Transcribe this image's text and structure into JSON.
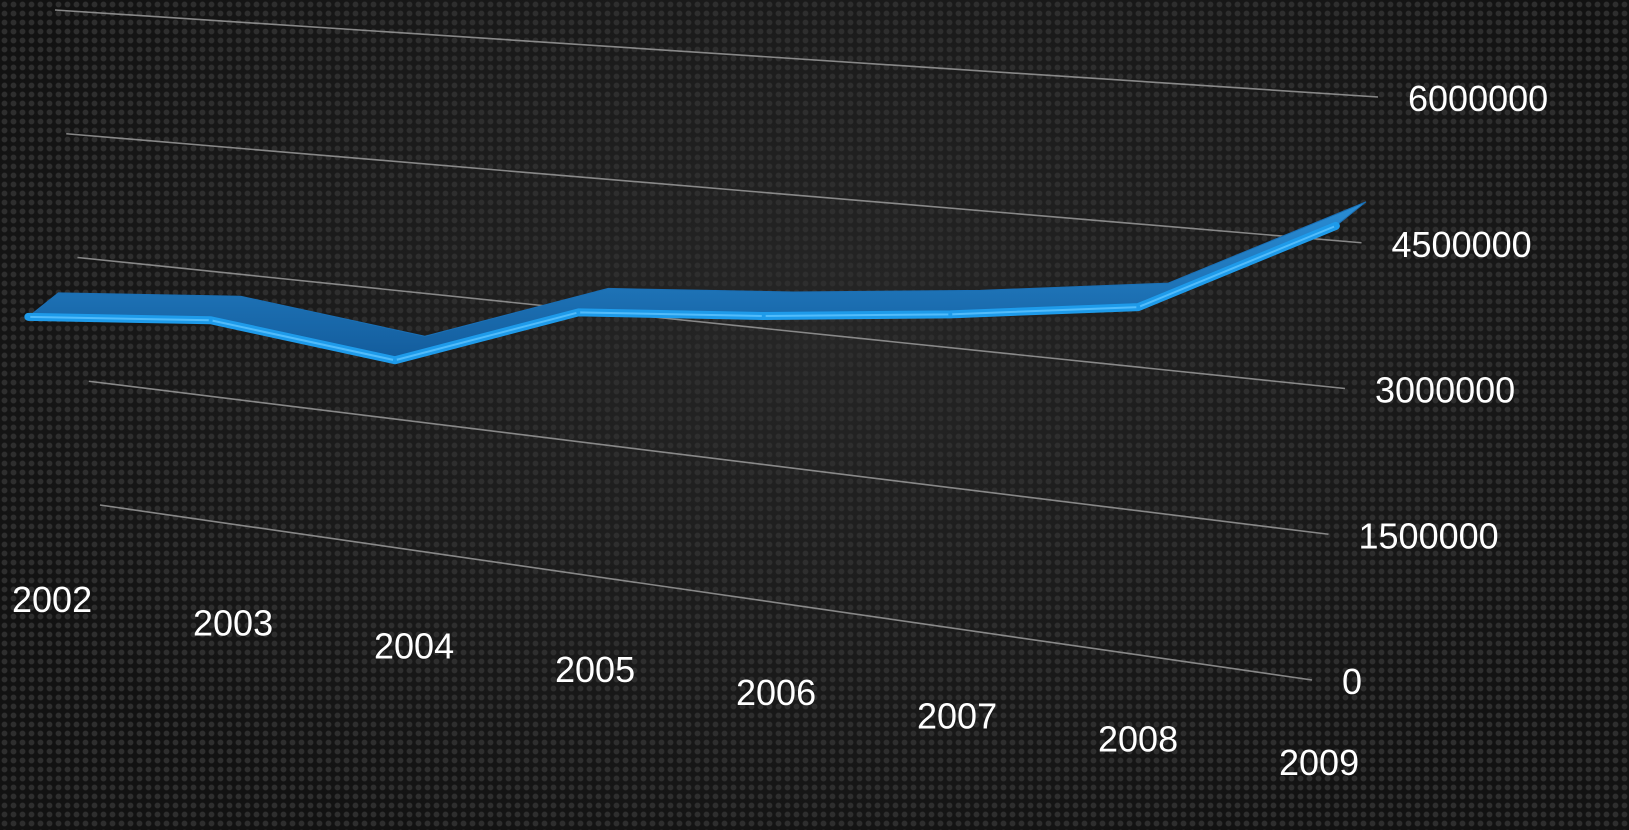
{
  "chart_data": {
    "type": "line",
    "style": "3d-ribbon",
    "title": "",
    "xlabel": "",
    "ylabel": "",
    "categories": [
      "2002",
      "2003",
      "2004",
      "2005",
      "2006",
      "2007",
      "2008",
      "2009"
    ],
    "series": [
      {
        "values": [
          2620000,
          2800000,
          2550000,
          3300000,
          3450000,
          3650000,
          3900000,
          4900000
        ]
      }
    ],
    "y_ticks": [
      0,
      1500000,
      3000000,
      4500000,
      6000000
    ],
    "y_tick_labels": [
      "0",
      "1500000",
      "3000000",
      "4500000",
      "6000000"
    ],
    "ylim": [
      0,
      6000000
    ],
    "grid": true,
    "legend": "none",
    "colors": {
      "line": "#1e9bea",
      "line_top": "#1a6fb5",
      "grid": "#9a9a9a",
      "text": "#ffffff",
      "background": "#161616"
    }
  }
}
